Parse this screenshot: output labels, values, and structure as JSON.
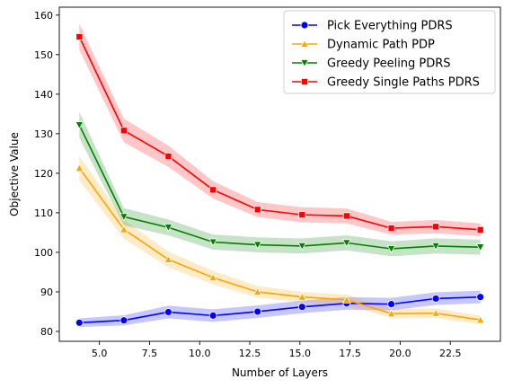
{
  "chart_data": {
    "type": "line",
    "title": "",
    "xlabel": "Number of Layers",
    "ylabel": "Objective Value",
    "xlim": [
      3.0,
      25.0
    ],
    "ylim": [
      77.5,
      162.0
    ],
    "xticks": [
      5.0,
      7.5,
      10.0,
      12.5,
      15.0,
      17.5,
      20.0,
      22.5
    ],
    "xtick_labels": [
      "5.0",
      "7.5",
      "10.0",
      "12.5",
      "15.0",
      "17.5",
      "20.0",
      "22.5"
    ],
    "yticks": [
      80,
      90,
      100,
      110,
      120,
      130,
      140,
      150,
      160
    ],
    "ytick_labels": [
      "80",
      "90",
      "100",
      "110",
      "120",
      "130",
      "140",
      "150",
      "160"
    ],
    "grid": false,
    "legend_position": "top-right",
    "x": [
      4,
      6.22,
      8.44,
      10.67,
      12.89,
      15.11,
      17.33,
      19.56,
      21.78,
      24
    ],
    "series": [
      {
        "name": "Pick Everything PDRS",
        "color": "#0000ff",
        "marker": "circle",
        "values": [
          82.2,
          82.8,
          84.9,
          84.0,
          85.0,
          86.2,
          87.1,
          86.9,
          88.3,
          88.7
        ],
        "lower": [
          81.1,
          81.5,
          83.3,
          82.4,
          83.4,
          84.6,
          85.5,
          85.3,
          86.7,
          87.1
        ],
        "upper": [
          83.3,
          84.1,
          86.5,
          85.6,
          86.6,
          87.8,
          88.7,
          88.5,
          89.9,
          90.3
        ]
      },
      {
        "name": "Dynamic Path PDP",
        "color": "#ffa500",
        "marker": "triangle-up",
        "values": [
          121.3,
          105.8,
          98.2,
          93.6,
          90.0,
          88.7,
          88.0,
          84.5,
          84.6,
          82.9
        ],
        "lower": [
          118.2,
          103.4,
          96.2,
          91.9,
          88.5,
          87.4,
          86.7,
          83.3,
          83.4,
          81.8
        ],
        "upper": [
          124.4,
          108.2,
          100.2,
          95.3,
          91.5,
          90.0,
          89.3,
          85.7,
          85.8,
          84.0
        ]
      },
      {
        "name": "Greedy Peeling PDRS",
        "color": "#008000",
        "marker": "triangle-down",
        "values": [
          132.2,
          109.0,
          106.3,
          102.6,
          101.9,
          101.6,
          102.4,
          100.9,
          101.6,
          101.3
        ],
        "lower": [
          128.9,
          106.8,
          104.3,
          100.7,
          100.0,
          99.7,
          100.5,
          99.0,
          99.7,
          99.4
        ],
        "upper": [
          135.5,
          111.2,
          108.3,
          104.5,
          103.8,
          103.5,
          104.3,
          102.8,
          103.5,
          103.2
        ]
      },
      {
        "name": "Greedy Single Paths PDRS",
        "color": "#ff0000",
        "marker": "square",
        "values": [
          154.5,
          130.8,
          124.3,
          115.8,
          110.8,
          109.5,
          109.2,
          106.1,
          106.5,
          105.7
        ],
        "lower": [
          151.2,
          127.8,
          121.6,
          113.6,
          108.9,
          107.6,
          107.3,
          104.5,
          104.8,
          104.1
        ],
        "upper": [
          157.8,
          133.8,
          127.0,
          118.0,
          112.7,
          111.4,
          111.1,
          107.7,
          108.2,
          107.3
        ]
      }
    ]
  }
}
